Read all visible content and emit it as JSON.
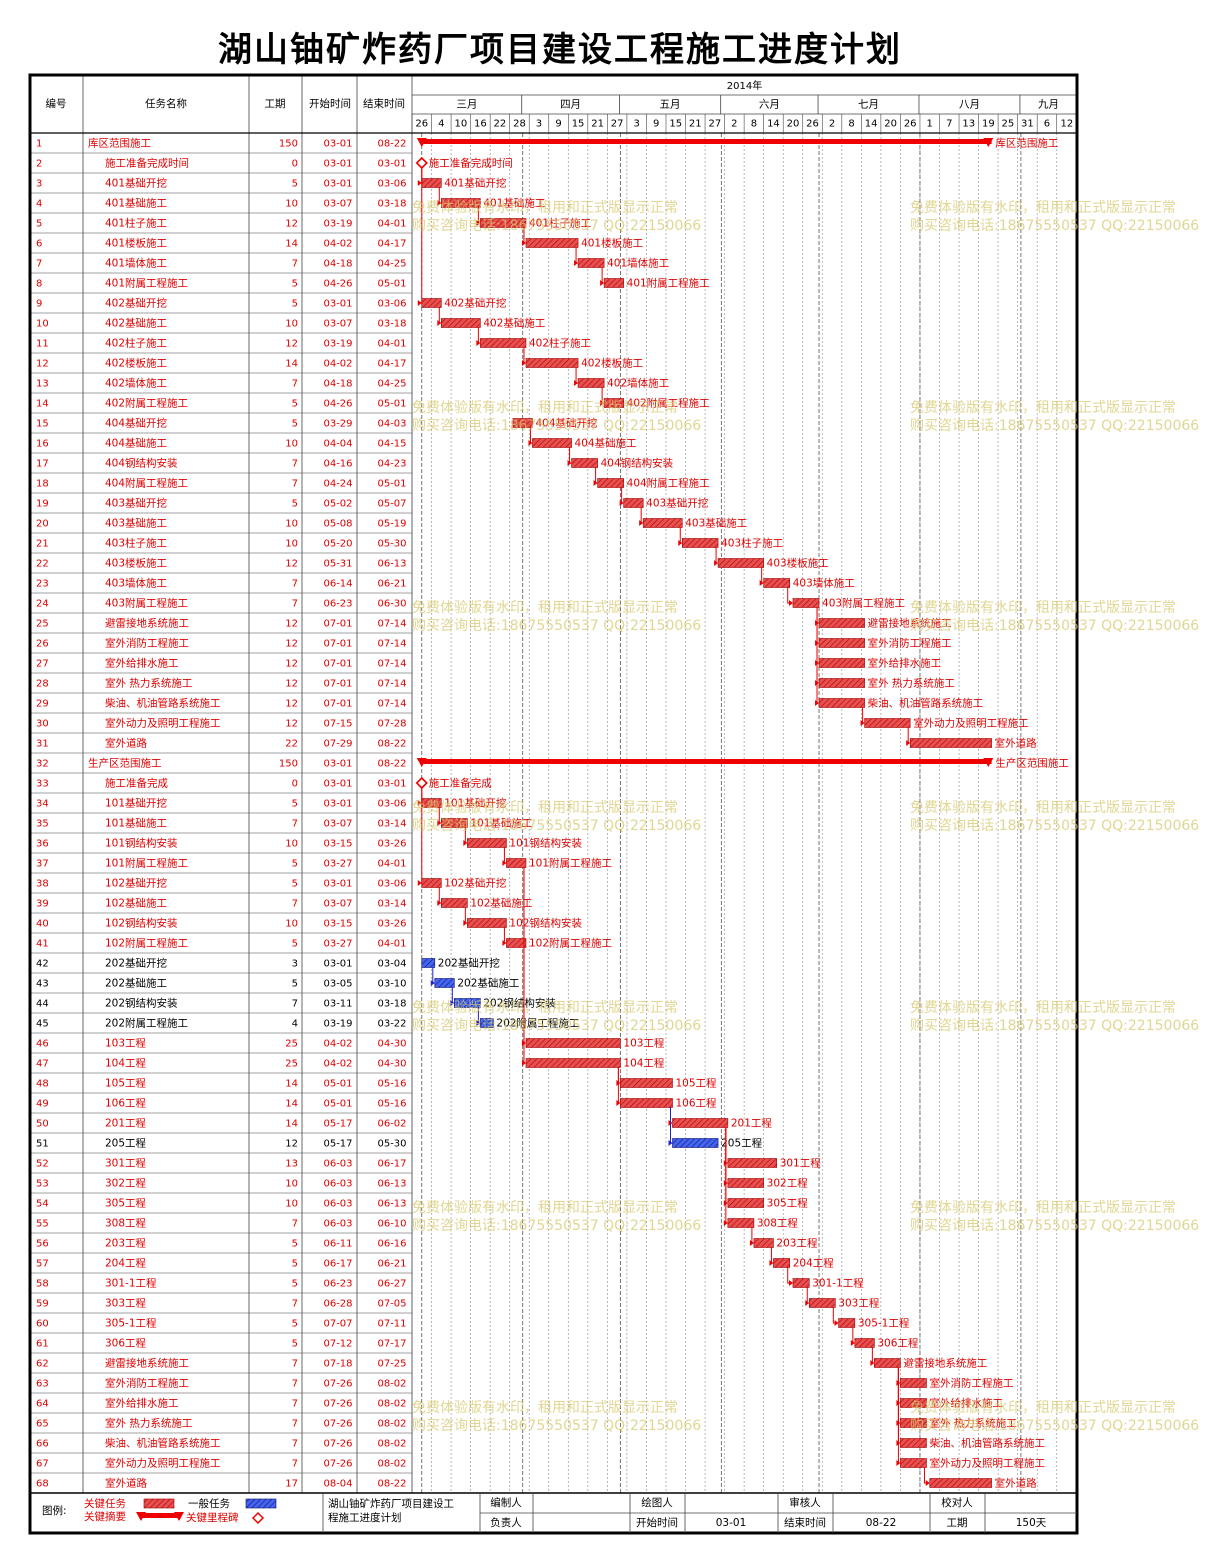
{
  "title": "湖山铀矿炸药厂项目建设工程施工进度计划",
  "headers": {
    "id": "编号",
    "name": "任务名称",
    "dur": "工期",
    "start": "开始时间",
    "end": "结束时间",
    "year": "2014年"
  },
  "months": [
    "三月",
    "四月",
    "五月",
    "六月",
    "七月",
    "八月",
    "九月"
  ],
  "ticks": [
    "26",
    "4",
    "10",
    "16",
    "22",
    "28",
    "3",
    "9",
    "15",
    "21",
    "27",
    "3",
    "9",
    "15",
    "21",
    "27",
    "2",
    "8",
    "14",
    "20",
    "26",
    "2",
    "8",
    "14",
    "20",
    "26",
    "1",
    "7",
    "13",
    "19",
    "25",
    "31",
    "6",
    "12"
  ],
  "colors": {
    "critical": "#ee0000",
    "normal": "#2222cc",
    "critical_fill": "#e85050",
    "normal_fill": "#3355dd",
    "text_red": "#dd0000",
    "border": "#000000",
    "grid": "#888888"
  },
  "watermark": [
    "免费体验版有水印，租用和正式版显示正常",
    "购买咨询电话:18675550537 QQ:22150066"
  ],
  "chart_data": {
    "type": "gantt",
    "x_axis": {
      "start": "2014-02-26",
      "end": "2014-09-17"
    },
    "tasks": [
      {
        "id": "1",
        "name": "库区范围施工",
        "dur": "150",
        "start": "03-01",
        "end": "08-22",
        "kind": "summary",
        "critical": true
      },
      {
        "id": "2",
        "name": "施工准备完成时间",
        "dur": "0",
        "start": "03-01",
        "end": "03-01",
        "kind": "milestone",
        "critical": true
      },
      {
        "id": "3",
        "name": "401基础开挖",
        "dur": "5",
        "start": "03-01",
        "end": "03-06",
        "kind": "task",
        "critical": true
      },
      {
        "id": "4",
        "name": "401基础施工",
        "dur": "10",
        "start": "03-07",
        "end": "03-18",
        "kind": "task",
        "critical": true
      },
      {
        "id": "5",
        "name": "401柱子施工",
        "dur": "12",
        "start": "03-19",
        "end": "04-01",
        "kind": "task",
        "critical": true
      },
      {
        "id": "6",
        "name": "401楼板施工",
        "dur": "14",
        "start": "04-02",
        "end": "04-17",
        "kind": "task",
        "critical": true
      },
      {
        "id": "7",
        "name": "401墙体施工",
        "dur": "7",
        "start": "04-18",
        "end": "04-25",
        "kind": "task",
        "critical": true
      },
      {
        "id": "8",
        "name": "401附属工程施工",
        "dur": "5",
        "start": "04-26",
        "end": "05-01",
        "kind": "task",
        "critical": true
      },
      {
        "id": "9",
        "name": "402基础开挖",
        "dur": "5",
        "start": "03-01",
        "end": "03-06",
        "kind": "task",
        "critical": true
      },
      {
        "id": "10",
        "name": "402基础施工",
        "dur": "10",
        "start": "03-07",
        "end": "03-18",
        "kind": "task",
        "critical": true
      },
      {
        "id": "11",
        "name": "402柱子施工",
        "dur": "12",
        "start": "03-19",
        "end": "04-01",
        "kind": "task",
        "critical": true
      },
      {
        "id": "12",
        "name": "402楼板施工",
        "dur": "14",
        "start": "04-02",
        "end": "04-17",
        "kind": "task",
        "critical": true
      },
      {
        "id": "13",
        "name": "402墙体施工",
        "dur": "7",
        "start": "04-18",
        "end": "04-25",
        "kind": "task",
        "critical": true
      },
      {
        "id": "14",
        "name": "402附属工程施工",
        "dur": "5",
        "start": "04-26",
        "end": "05-01",
        "kind": "task",
        "critical": true
      },
      {
        "id": "15",
        "name": "404基础开挖",
        "dur": "5",
        "start": "03-29",
        "end": "04-03",
        "kind": "task",
        "critical": true
      },
      {
        "id": "16",
        "name": "404基础施工",
        "dur": "10",
        "start": "04-04",
        "end": "04-15",
        "kind": "task",
        "critical": true
      },
      {
        "id": "17",
        "name": "404钢结构安装",
        "dur": "7",
        "start": "04-16",
        "end": "04-23",
        "kind": "task",
        "critical": true
      },
      {
        "id": "18",
        "name": "404附属工程施工",
        "dur": "7",
        "start": "04-24",
        "end": "05-01",
        "kind": "task",
        "critical": true
      },
      {
        "id": "19",
        "name": "403基础开挖",
        "dur": "5",
        "start": "05-02",
        "end": "05-07",
        "kind": "task",
        "critical": true
      },
      {
        "id": "20",
        "name": "403基础施工",
        "dur": "10",
        "start": "05-08",
        "end": "05-19",
        "kind": "task",
        "critical": true
      },
      {
        "id": "21",
        "name": "403柱子施工",
        "dur": "10",
        "start": "05-20",
        "end": "05-30",
        "kind": "task",
        "critical": true
      },
      {
        "id": "22",
        "name": "403楼板施工",
        "dur": "12",
        "start": "05-31",
        "end": "06-13",
        "kind": "task",
        "critical": true
      },
      {
        "id": "23",
        "name": "403墙体施工",
        "dur": "7",
        "start": "06-14",
        "end": "06-21",
        "kind": "task",
        "critical": true
      },
      {
        "id": "24",
        "name": "403附属工程施工",
        "dur": "7",
        "start": "06-23",
        "end": "06-30",
        "kind": "task",
        "critical": true
      },
      {
        "id": "25",
        "name": "避雷接地系统施工",
        "dur": "12",
        "start": "07-01",
        "end": "07-14",
        "kind": "task",
        "critical": true
      },
      {
        "id": "26",
        "name": "室外消防工程施工",
        "dur": "12",
        "start": "07-01",
        "end": "07-14",
        "kind": "task",
        "critical": true
      },
      {
        "id": "27",
        "name": "室外给排水施工",
        "dur": "12",
        "start": "07-01",
        "end": "07-14",
        "kind": "task",
        "critical": true
      },
      {
        "id": "28",
        "name": "室外 热力系统施工",
        "dur": "12",
        "start": "07-01",
        "end": "07-14",
        "kind": "task",
        "critical": true
      },
      {
        "id": "29",
        "name": "柴油、机油管路系统施工",
        "dur": "12",
        "start": "07-01",
        "end": "07-14",
        "kind": "task",
        "critical": true
      },
      {
        "id": "30",
        "name": "室外动力及照明工程施工",
        "dur": "12",
        "start": "07-15",
        "end": "07-28",
        "kind": "task",
        "critical": true
      },
      {
        "id": "31",
        "name": "室外道路",
        "dur": "22",
        "start": "07-29",
        "end": "08-22",
        "kind": "task",
        "critical": true
      },
      {
        "id": "32",
        "name": "生产区范围施工",
        "dur": "150",
        "start": "03-01",
        "end": "08-22",
        "kind": "summary",
        "critical": true
      },
      {
        "id": "33",
        "name": "施工准备完成",
        "dur": "0",
        "start": "03-01",
        "end": "03-01",
        "kind": "milestone",
        "critical": true
      },
      {
        "id": "34",
        "name": "101基础开挖",
        "dur": "5",
        "start": "03-01",
        "end": "03-06",
        "kind": "task",
        "critical": true
      },
      {
        "id": "35",
        "name": "101基础施工",
        "dur": "7",
        "start": "03-07",
        "end": "03-14",
        "kind": "task",
        "critical": true
      },
      {
        "id": "36",
        "name": "101钢结构安装",
        "dur": "10",
        "start": "03-15",
        "end": "03-26",
        "kind": "task",
        "critical": true
      },
      {
        "id": "37",
        "name": "101附属工程施工",
        "dur": "5",
        "start": "03-27",
        "end": "04-01",
        "kind": "task",
        "critical": true
      },
      {
        "id": "38",
        "name": "102基础开挖",
        "dur": "5",
        "start": "03-01",
        "end": "03-06",
        "kind": "task",
        "critical": true
      },
      {
        "id": "39",
        "name": "102基础施工",
        "dur": "7",
        "start": "03-07",
        "end": "03-14",
        "kind": "task",
        "critical": true
      },
      {
        "id": "40",
        "name": "102钢结构安装",
        "dur": "10",
        "start": "03-15",
        "end": "03-26",
        "kind": "task",
        "critical": true
      },
      {
        "id": "41",
        "name": "102附属工程施工",
        "dur": "5",
        "start": "03-27",
        "end": "04-01",
        "kind": "task",
        "critical": true
      },
      {
        "id": "42",
        "name": "202基础开挖",
        "dur": "3",
        "start": "03-01",
        "end": "03-04",
        "kind": "task",
        "critical": false
      },
      {
        "id": "43",
        "name": "202基础施工",
        "dur": "5",
        "start": "03-05",
        "end": "03-10",
        "kind": "task",
        "critical": false
      },
      {
        "id": "44",
        "name": "202钢结构安装",
        "dur": "7",
        "start": "03-11",
        "end": "03-18",
        "kind": "task",
        "critical": false
      },
      {
        "id": "45",
        "name": "202附属工程施工",
        "dur": "4",
        "start": "03-19",
        "end": "03-22",
        "kind": "task",
        "critical": false
      },
      {
        "id": "46",
        "name": "103工程",
        "dur": "25",
        "start": "04-02",
        "end": "04-30",
        "kind": "task",
        "critical": true
      },
      {
        "id": "47",
        "name": "104工程",
        "dur": "25",
        "start": "04-02",
        "end": "04-30",
        "kind": "task",
        "critical": true
      },
      {
        "id": "48",
        "name": "105工程",
        "dur": "14",
        "start": "05-01",
        "end": "05-16",
        "kind": "task",
        "critical": true
      },
      {
        "id": "49",
        "name": "106工程",
        "dur": "14",
        "start": "05-01",
        "end": "05-16",
        "kind": "task",
        "critical": true
      },
      {
        "id": "50",
        "name": "201工程",
        "dur": "14",
        "start": "05-17",
        "end": "06-02",
        "kind": "task",
        "critical": true
      },
      {
        "id": "51",
        "name": "205工程",
        "dur": "12",
        "start": "05-17",
        "end": "05-30",
        "kind": "task",
        "critical": false
      },
      {
        "id": "52",
        "name": "301工程",
        "dur": "13",
        "start": "06-03",
        "end": "06-17",
        "kind": "task",
        "critical": true
      },
      {
        "id": "53",
        "name": "302工程",
        "dur": "10",
        "start": "06-03",
        "end": "06-13",
        "kind": "task",
        "critical": true
      },
      {
        "id": "54",
        "name": "305工程",
        "dur": "10",
        "start": "06-03",
        "end": "06-13",
        "kind": "task",
        "critical": true
      },
      {
        "id": "55",
        "name": "308工程",
        "dur": "7",
        "start": "06-03",
        "end": "06-10",
        "kind": "task",
        "critical": true
      },
      {
        "id": "56",
        "name": "203工程",
        "dur": "5",
        "start": "06-11",
        "end": "06-16",
        "kind": "task",
        "critical": true
      },
      {
        "id": "57",
        "name": "204工程",
        "dur": "5",
        "start": "06-17",
        "end": "06-21",
        "kind": "task",
        "critical": true
      },
      {
        "id": "58",
        "name": "301-1工程",
        "dur": "5",
        "start": "06-23",
        "end": "06-27",
        "kind": "task",
        "critical": true
      },
      {
        "id": "59",
        "name": "303工程",
        "dur": "7",
        "start": "06-28",
        "end": "07-05",
        "kind": "task",
        "critical": true
      },
      {
        "id": "60",
        "name": "305-1工程",
        "dur": "5",
        "start": "07-07",
        "end": "07-11",
        "kind": "task",
        "critical": true
      },
      {
        "id": "61",
        "name": "306工程",
        "dur": "5",
        "start": "07-12",
        "end": "07-17",
        "kind": "task",
        "critical": true
      },
      {
        "id": "62",
        "name": "避雷接地系统施工",
        "dur": "7",
        "start": "07-18",
        "end": "07-25",
        "kind": "task",
        "critical": true
      },
      {
        "id": "63",
        "name": "室外消防工程施工",
        "dur": "7",
        "start": "07-26",
        "end": "08-02",
        "kind": "task",
        "critical": true
      },
      {
        "id": "64",
        "name": "室外给排水施工",
        "dur": "7",
        "start": "07-26",
        "end": "08-02",
        "kind": "task",
        "critical": true
      },
      {
        "id": "65",
        "name": "室外 热力系统施工",
        "dur": "7",
        "start": "07-26",
        "end": "08-02",
        "kind": "task",
        "critical": true
      },
      {
        "id": "66",
        "name": "柴油、机油管路系统施工",
        "dur": "7",
        "start": "07-26",
        "end": "08-02",
        "kind": "task",
        "critical": true
      },
      {
        "id": "67",
        "name": "室外动力及照明工程施工",
        "dur": "7",
        "start": "07-26",
        "end": "08-02",
        "kind": "task",
        "critical": true
      },
      {
        "id": "68",
        "name": "室外道路",
        "dur": "17",
        "start": "08-04",
        "end": "08-22",
        "kind": "task",
        "critical": true
      }
    ],
    "links": [
      [
        2,
        3
      ],
      [
        3,
        4
      ],
      [
        4,
        5
      ],
      [
        5,
        6
      ],
      [
        6,
        7
      ],
      [
        7,
        8
      ],
      [
        2,
        9
      ],
      [
        9,
        10
      ],
      [
        10,
        11
      ],
      [
        11,
        12
      ],
      [
        12,
        13
      ],
      [
        13,
        14
      ],
      [
        15,
        16
      ],
      [
        16,
        17
      ],
      [
        17,
        18
      ],
      [
        18,
        19
      ],
      [
        19,
        20
      ],
      [
        20,
        21
      ],
      [
        21,
        22
      ],
      [
        22,
        23
      ],
      [
        23,
        24
      ],
      [
        24,
        25
      ],
      [
        24,
        26
      ],
      [
        24,
        27
      ],
      [
        24,
        28
      ],
      [
        24,
        29
      ],
      [
        29,
        30
      ],
      [
        30,
        31
      ],
      [
        33,
        34
      ],
      [
        34,
        35
      ],
      [
        35,
        36
      ],
      [
        36,
        37
      ],
      [
        33,
        38
      ],
      [
        38,
        39
      ],
      [
        39,
        40
      ],
      [
        40,
        41
      ],
      [
        42,
        43
      ],
      [
        43,
        44
      ],
      [
        44,
        45
      ],
      [
        37,
        46
      ],
      [
        37,
        47
      ],
      [
        47,
        48
      ],
      [
        47,
        49
      ],
      [
        49,
        50
      ],
      [
        49,
        51
      ],
      [
        50,
        52
      ],
      [
        50,
        53
      ],
      [
        50,
        54
      ],
      [
        50,
        55
      ],
      [
        55,
        56
      ],
      [
        56,
        57
      ],
      [
        57,
        58
      ],
      [
        58,
        59
      ],
      [
        59,
        60
      ],
      [
        60,
        61
      ],
      [
        61,
        62
      ],
      [
        62,
        63
      ],
      [
        62,
        64
      ],
      [
        62,
        65
      ],
      [
        62,
        66
      ],
      [
        62,
        67
      ],
      [
        67,
        68
      ]
    ]
  },
  "footer": {
    "legend_label": "图例:",
    "critical_task": "关键任务",
    "normal_task": "一般任务",
    "critical_summary": "关键摘要",
    "critical_milestone": "关键里程碑",
    "project_name_1": "湖山铀矿炸药厂项目建设工",
    "project_name_2": "程施工进度计划",
    "editor_label": "编制人",
    "drafter_label": "绘图人",
    "reviewer_label": "审核人",
    "checker_label": "校对人",
    "owner_label": "负责人",
    "start_label": "开始时间",
    "start_value": "03-01",
    "end_label": "结束时间",
    "end_value": "08-22",
    "duration_label": "工期",
    "duration_value": "150天"
  }
}
